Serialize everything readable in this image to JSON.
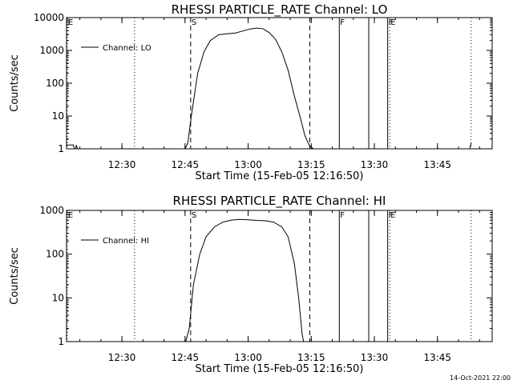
{
  "footer": "14-Oct-2021 22:00",
  "chart_data": [
    {
      "type": "line",
      "title": "RHESSI PARTICLE_RATE Channel: LO",
      "xlabel": "Start Time (15-Feb-05 12:16:50)",
      "ylabel": "Counts/sec",
      "yscale": "log",
      "xlim": [
        "12:16:50",
        "13:58:00"
      ],
      "ylim": [
        1,
        10000
      ],
      "ytick_labels": [
        "1",
        "10",
        "100",
        "1000",
        "10000"
      ],
      "xtick_labels": [
        "12:30",
        "12:45",
        "13:00",
        "13:15",
        "13:30",
        "13:45"
      ],
      "legend": "top-left",
      "series": [
        {
          "name": "Channel: LO",
          "points": [
            [
              "12:16:50",
              1.3
            ],
            [
              "12:18:30",
              1.3
            ],
            [
              "12:18:40",
              0.9
            ],
            [
              "12:19:00",
              1.0
            ],
            [
              "12:19:10",
              1.3
            ],
            [
              "12:19:25",
              0.9
            ],
            [
              "12:45:00",
              0.9
            ],
            [
              "12:45:40",
              1.5
            ],
            [
              "12:46:30",
              10
            ],
            [
              "12:48:00",
              200
            ],
            [
              "12:49:30",
              900
            ],
            [
              "12:51:00",
              2000
            ],
            [
              "12:53:00",
              3000
            ],
            [
              "12:55:00",
              3200
            ],
            [
              "12:57:00",
              3400
            ],
            [
              "12:59:00",
              4000
            ],
            [
              "13:00:30",
              4500
            ],
            [
              "13:02:00",
              4800
            ],
            [
              "13:03:30",
              4600
            ],
            [
              "13:05:00",
              3500
            ],
            [
              "13:06:30",
              2200
            ],
            [
              "13:08:00",
              900
            ],
            [
              "13:09:30",
              250
            ],
            [
              "13:11:00",
              40
            ],
            [
              "13:12:30",
              8
            ],
            [
              "13:13:30",
              2.5
            ],
            [
              "13:14:30",
              1.3
            ],
            [
              "13:15:30",
              1.0
            ],
            [
              "13:16:00",
              0.9
            ],
            [
              "13:52:40",
              0.9
            ],
            [
              "13:53:00",
              1.5
            ]
          ]
        }
      ],
      "vlines": [
        {
          "time": "12:17:00",
          "style": "dotted"
        },
        {
          "time": "12:33:00",
          "style": "dotted"
        },
        {
          "time": "12:46:20",
          "style": "dashed"
        },
        {
          "time": "13:14:40",
          "style": "dashed"
        },
        {
          "time": "13:21:40",
          "style": "solid"
        },
        {
          "time": "13:28:40",
          "style": "solid"
        },
        {
          "time": "13:33:10",
          "style": "solid"
        },
        {
          "time": "13:33:40",
          "style": "dotted"
        },
        {
          "time": "13:53:00",
          "style": "dotted"
        }
      ],
      "markers": [
        {
          "time": "12:17:00",
          "label": "E"
        },
        {
          "time": "12:46:20",
          "label": "S"
        },
        {
          "time": "13:21:40",
          "label": "F"
        },
        {
          "time": "13:33:10",
          "label": "F"
        },
        {
          "time": "13:33:40",
          "label": "E"
        }
      ]
    },
    {
      "type": "line",
      "title": "RHESSI PARTICLE_RATE Channel: HI",
      "xlabel": "Start Time (15-Feb-05 12:16:50)",
      "ylabel": "Counts/sec",
      "yscale": "log",
      "xlim": [
        "12:16:50",
        "13:58:00"
      ],
      "ylim": [
        1,
        1000
      ],
      "ytick_labels": [
        "1",
        "10",
        "100",
        "1000"
      ],
      "xtick_labels": [
        "12:30",
        "12:45",
        "13:00",
        "13:15",
        "13:30",
        "13:45"
      ],
      "legend": "top-left",
      "series": [
        {
          "name": "Channel: HI",
          "points": [
            [
              "12:45:10",
              0.9
            ],
            [
              "12:46:00",
              2
            ],
            [
              "12:47:00",
              20
            ],
            [
              "12:48:30",
              100
            ],
            [
              "12:50:00",
              250
            ],
            [
              "12:52:00",
              420
            ],
            [
              "12:54:00",
              540
            ],
            [
              "12:56:00",
              600
            ],
            [
              "12:58:00",
              620
            ],
            [
              "13:00:00",
              610
            ],
            [
              "13:02:00",
              590
            ],
            [
              "13:04:00",
              580
            ],
            [
              "13:06:00",
              540
            ],
            [
              "13:08:00",
              420
            ],
            [
              "13:09:30",
              250
            ],
            [
              "13:11:00",
              60
            ],
            [
              "13:12:00",
              10
            ],
            [
              "13:12:50",
              1.5
            ],
            [
              "13:13:10",
              0.9
            ]
          ]
        }
      ],
      "vlines": [
        {
          "time": "12:17:00",
          "style": "dotted"
        },
        {
          "time": "12:33:00",
          "style": "dotted"
        },
        {
          "time": "12:46:20",
          "style": "dashed"
        },
        {
          "time": "13:14:40",
          "style": "dashed"
        },
        {
          "time": "13:21:40",
          "style": "solid"
        },
        {
          "time": "13:28:40",
          "style": "solid"
        },
        {
          "time": "13:33:10",
          "style": "solid"
        },
        {
          "time": "13:33:40",
          "style": "dotted"
        },
        {
          "time": "13:53:00",
          "style": "dotted"
        }
      ],
      "markers": [
        {
          "time": "12:17:00",
          "label": "E"
        },
        {
          "time": "12:46:20",
          "label": "S"
        },
        {
          "time": "13:21:40",
          "label": "F"
        },
        {
          "time": "13:33:10",
          "label": "F"
        },
        {
          "time": "13:33:40",
          "label": "E"
        }
      ]
    }
  ]
}
